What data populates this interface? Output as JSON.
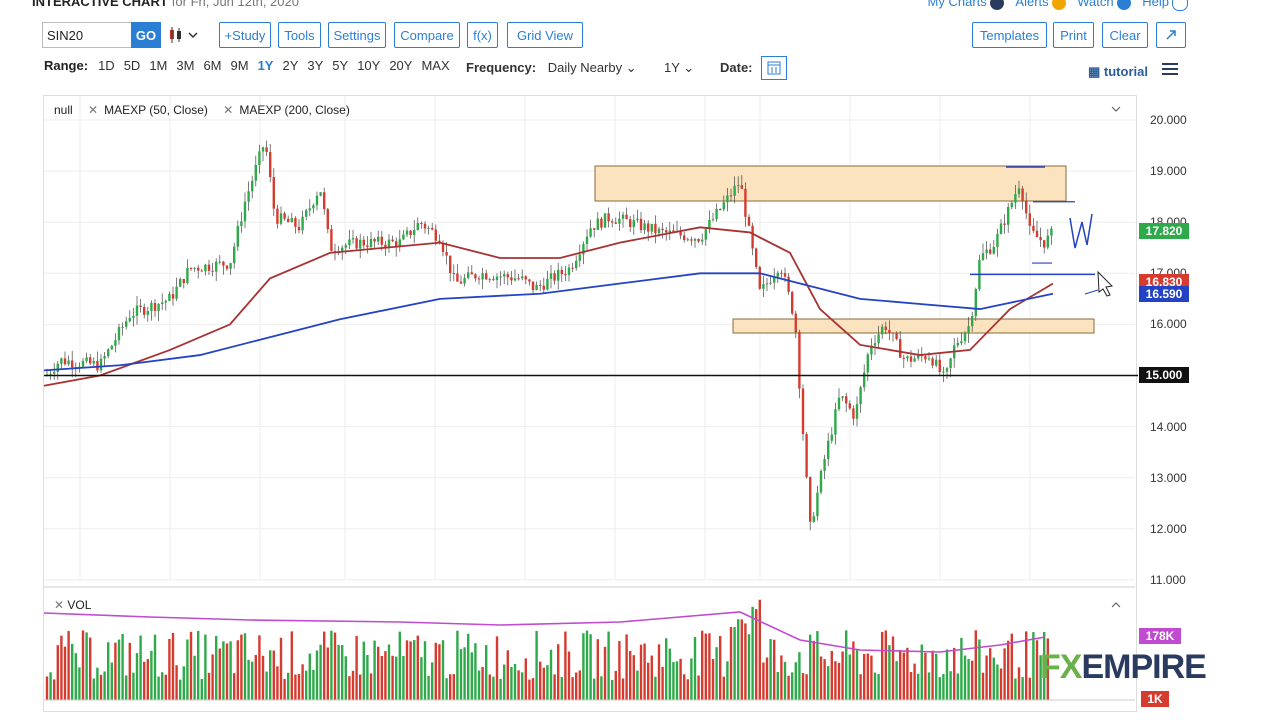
{
  "header": {
    "title": "INTERACTIVE CHART",
    "date": "for Fri, Jun 12th, 2020",
    "links": [
      "My Charts",
      "Alerts",
      "Watch",
      "Help"
    ]
  },
  "toolbar": {
    "symbol": "SIN20",
    "go": "GO",
    "study": "+Study",
    "tools": "Tools",
    "settings": "Settings",
    "compare": "Compare",
    "fx": "f(x)",
    "grid": "Grid View",
    "templates": "Templates",
    "print": "Print",
    "clear": "Clear"
  },
  "range": {
    "label": "Range:",
    "options": [
      "1D",
      "5D",
      "1M",
      "3M",
      "6M",
      "9M",
      "1Y",
      "2Y",
      "3Y",
      "5Y",
      "10Y",
      "20Y",
      "MAX"
    ],
    "active": "1Y"
  },
  "frequency": {
    "label": "Frequency:",
    "value": "Daily Nearby"
  },
  "period": {
    "value": "1Y"
  },
  "date_label": "Date:",
  "tutorial": "tutorial",
  "studies": {
    "s0": "null",
    "s1": "MAEXP (50, Close)",
    "s2": "MAEXP (200, Close)",
    "vol": "VOL"
  },
  "price_axis": [
    "20.000",
    "19.000",
    "18.000",
    "17.000",
    "16.000",
    "15.000",
    "14.000",
    "13.000",
    "12.000",
    "11.000"
  ],
  "tags": {
    "last": "17.820",
    "ma50": "16.830",
    "ma200": "16.590",
    "hline": "15.000",
    "vol_ma": "178K",
    "vol_last": "1K"
  },
  "colors": {
    "up": "#2eaa4a",
    "down": "#d63b2f",
    "ma50": "#a83232",
    "ma200": "#2443c4",
    "zone": "#fbe3bf",
    "vol_ma": "#c04ad0",
    "accent": "#2a7fd4"
  },
  "logo": {
    "fx": "FX",
    "rest": "EMPIRE"
  }
}
